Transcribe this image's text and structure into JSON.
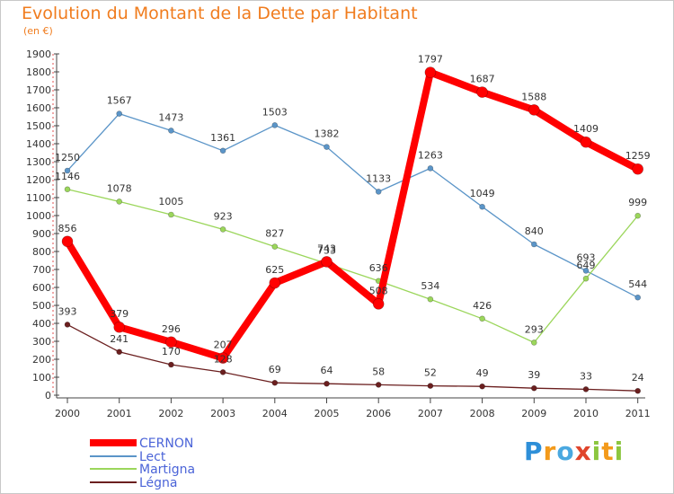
{
  "title": "Evolution du Montant de la Dette par Habitant",
  "unit_label": "(en €)",
  "logo_text": "Proxiti",
  "chart_data": {
    "type": "line",
    "title": "Evolution du Montant de la Dette par Habitant",
    "xlabel": "",
    "ylabel": "(en €)",
    "ylim": [
      0,
      1900
    ],
    "y_ticks": [
      0,
      100,
      200,
      300,
      400,
      500,
      600,
      700,
      800,
      900,
      1000,
      1100,
      1200,
      1300,
      1400,
      1500,
      1600,
      1700,
      1800,
      1900
    ],
    "grid": false,
    "legend_position": "bottom-left",
    "categories": [
      "2000",
      "2001",
      "2002",
      "2003",
      "2004",
      "2005",
      "2006",
      "2007",
      "2008",
      "2009",
      "2010",
      "2011"
    ],
    "series": [
      {
        "name": "CERNON",
        "color": "#ff0000",
        "values": [
          856,
          379,
          296,
          207,
          625,
          743,
          508,
          1797,
          1687,
          1588,
          1409,
          1259
        ]
      },
      {
        "name": "Lect",
        "color": "#5b95c8",
        "values": [
          1250,
          1567,
          1473,
          1361,
          1503,
          1382,
          1133,
          1263,
          1049,
          840,
          693,
          544
        ]
      },
      {
        "name": "Martigna",
        "color": "#9bd65b",
        "values": [
          1146,
          1078,
          1005,
          923,
          827,
          733,
          636,
          534,
          426,
          293,
          649,
          999
        ]
      },
      {
        "name": "Légna",
        "color": "#6b1f1f",
        "values": [
          393,
          241,
          170,
          128,
          69,
          64,
          58,
          52,
          49,
          39,
          33,
          24
        ]
      }
    ],
    "data_labels": {
      "CERNON": [
        "856",
        "379",
        "296",
        "207",
        "625",
        "743",
        "508",
        "1797",
        "1687",
        "1588",
        "1409",
        "1259"
      ],
      "Lect": [
        "1250",
        "1567",
        "1473",
        "1361",
        "1503",
        "1382",
        "1133",
        "1263",
        "1049",
        "840",
        "693",
        "544"
      ],
      "Martigna": [
        "1146",
        "1078",
        "1005",
        "923",
        "827",
        "733",
        "636",
        "534",
        "426",
        "293",
        "649",
        "999"
      ],
      "Légna": [
        "393",
        "241",
        "170",
        "128",
        "69",
        "64",
        "58",
        "52",
        "49",
        "39",
        "33",
        "24"
      ]
    }
  }
}
